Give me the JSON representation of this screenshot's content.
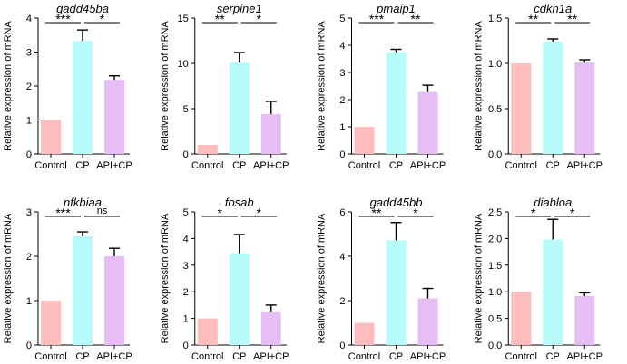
{
  "chart_data": [
    {
      "type": "bar",
      "title": "gadd45ba",
      "ylabel": "Relative expression of mRNA",
      "categories": [
        "Control",
        "CP",
        "API+CP"
      ],
      "values": [
        1.0,
        3.33,
        2.18
      ],
      "errors": [
        0,
        0.32,
        0.12
      ],
      "ylim": [
        0,
        4
      ],
      "yticks": [
        "0",
        "1",
        "2",
        "3",
        "4"
      ],
      "significance": [
        {
          "from": 0,
          "to": 1,
          "label": "***"
        },
        {
          "from": 1,
          "to": 2,
          "label": "*"
        }
      ]
    },
    {
      "type": "bar",
      "title": "serpine1",
      "ylabel": "Relative expression of mRNA",
      "categories": [
        "Control",
        "CP",
        "API+CP"
      ],
      "values": [
        1.0,
        10.1,
        4.4
      ],
      "errors": [
        0,
        1.1,
        1.4
      ],
      "ylim": [
        0,
        15
      ],
      "yticks": [
        "0",
        "5",
        "10",
        "15"
      ],
      "significance": [
        {
          "from": 0,
          "to": 1,
          "label": "**"
        },
        {
          "from": 1,
          "to": 2,
          "label": "*"
        }
      ]
    },
    {
      "type": "bar",
      "title": "pmaip1",
      "ylabel": "Relative expression of mRNA",
      "categories": [
        "Control",
        "CP",
        "API+CP"
      ],
      "values": [
        1.0,
        3.75,
        2.28
      ],
      "errors": [
        0,
        0.1,
        0.25
      ],
      "ylim": [
        0,
        5
      ],
      "yticks": [
        "0",
        "1",
        "2",
        "3",
        "4",
        "5"
      ],
      "significance": [
        {
          "from": 0,
          "to": 1,
          "label": "***"
        },
        {
          "from": 1,
          "to": 2,
          "label": "**"
        }
      ]
    },
    {
      "type": "bar",
      "title": "cdkn1a",
      "ylabel": "Relative expression of mRNA",
      "categories": [
        "Control",
        "CP",
        "API+CP"
      ],
      "values": [
        1.0,
        1.24,
        1.01
      ],
      "errors": [
        0,
        0.03,
        0.03
      ],
      "ylim": [
        0,
        1.5
      ],
      "yticks": [
        "0.0",
        "0.5",
        "1.0",
        "1.5"
      ],
      "significance": [
        {
          "from": 0,
          "to": 1,
          "label": "**"
        },
        {
          "from": 1,
          "to": 2,
          "label": "**"
        }
      ]
    },
    {
      "type": "bar",
      "title": "nfkbiaa",
      "ylabel": "Relative expression of mRNA",
      "categories": [
        "Control",
        "CP",
        "API+CP"
      ],
      "values": [
        1.0,
        2.45,
        2.0
      ],
      "errors": [
        0,
        0.1,
        0.18
      ],
      "ylim": [
        0,
        3
      ],
      "yticks": [
        "0",
        "1",
        "2",
        "3"
      ],
      "significance": [
        {
          "from": 0,
          "to": 1,
          "label": "***"
        },
        {
          "from": 1,
          "to": 2,
          "label": "ns"
        }
      ]
    },
    {
      "type": "bar",
      "title": "fosab",
      "ylabel": "Relative expression of mRNA",
      "categories": [
        "Control",
        "CP",
        "API+CP"
      ],
      "values": [
        1.0,
        3.45,
        1.23
      ],
      "errors": [
        0,
        0.7,
        0.27
      ],
      "ylim": [
        0,
        5
      ],
      "yticks": [
        "0",
        "1",
        "2",
        "3",
        "4",
        "5"
      ],
      "significance": [
        {
          "from": 0,
          "to": 1,
          "label": "*"
        },
        {
          "from": 1,
          "to": 2,
          "label": "*"
        }
      ]
    },
    {
      "type": "bar",
      "title": "gadd45bb",
      "ylabel": "Relative expression of mRNA",
      "categories": [
        "Control",
        "CP",
        "API+CP"
      ],
      "values": [
        1.0,
        4.72,
        2.1
      ],
      "errors": [
        0,
        0.8,
        0.45
      ],
      "ylim": [
        0,
        6
      ],
      "yticks": [
        "0",
        "2",
        "4",
        "6"
      ],
      "significance": [
        {
          "from": 0,
          "to": 1,
          "label": "**"
        },
        {
          "from": 1,
          "to": 2,
          "label": "*"
        }
      ]
    },
    {
      "type": "bar",
      "title": "diabloa",
      "ylabel": "Relative expression of mRNA",
      "categories": [
        "Control",
        "CP",
        "API+CP"
      ],
      "values": [
        1.0,
        1.98,
        0.92
      ],
      "errors": [
        0,
        0.38,
        0.06
      ],
      "ylim": [
        0,
        2.5
      ],
      "yticks": [
        "0.0",
        "0.5",
        "1.0",
        "1.5",
        "2.0",
        "2.5"
      ],
      "significance": [
        {
          "from": 0,
          "to": 1,
          "label": "*"
        },
        {
          "from": 1,
          "to": 2,
          "label": "*"
        }
      ]
    }
  ],
  "colors": {
    "Control": "#fcbdbd",
    "CP": "#b8fbfb",
    "API+CP": "#e6bdf4",
    "axis": "#000000"
  }
}
